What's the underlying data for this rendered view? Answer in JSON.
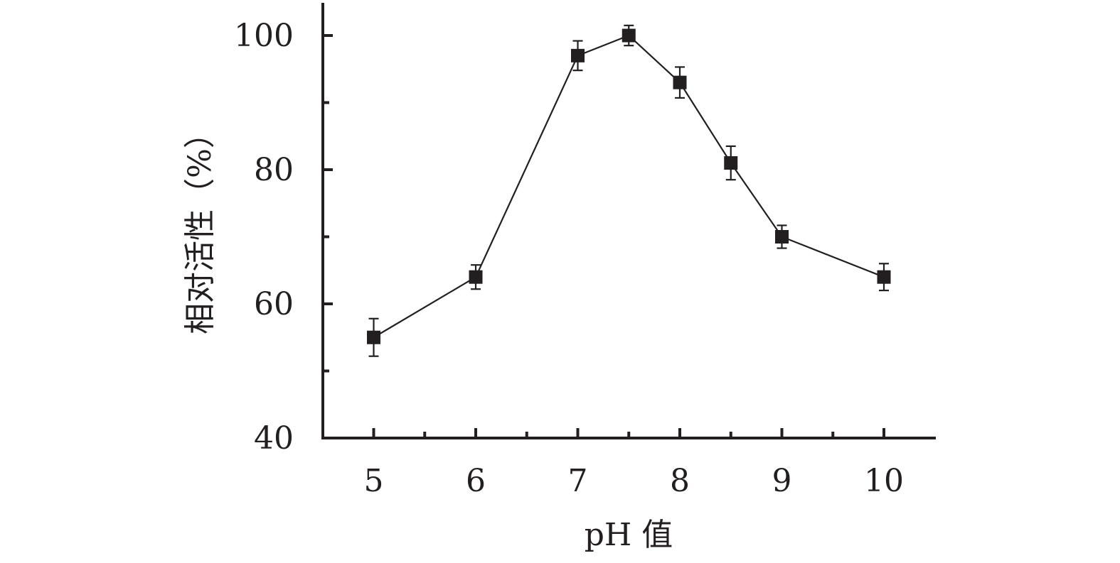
{
  "chart_data": {
    "type": "line",
    "xlabel": "pH 值",
    "ylabel": "相对活性（%）",
    "x_ticks": [
      "5",
      "6",
      "7",
      "8",
      "9",
      "10"
    ],
    "y_ticks": [
      "40",
      "60",
      "80",
      "100"
    ],
    "xlim": [
      4.5,
      10.5
    ],
    "ylim": [
      40,
      104.5
    ],
    "grid": false,
    "series": [
      {
        "x": [
          5,
          6,
          7,
          7.5,
          8,
          8.5,
          9,
          10
        ],
        "y": [
          55,
          64,
          97,
          100,
          93,
          81,
          70,
          64
        ],
        "error": [
          2.8,
          1.8,
          2.2,
          1.5,
          2.3,
          2.5,
          1.7,
          2.0
        ]
      }
    ],
    "colors": {
      "series": "#231f20",
      "axes": "#231f20"
    },
    "marker": "square"
  }
}
